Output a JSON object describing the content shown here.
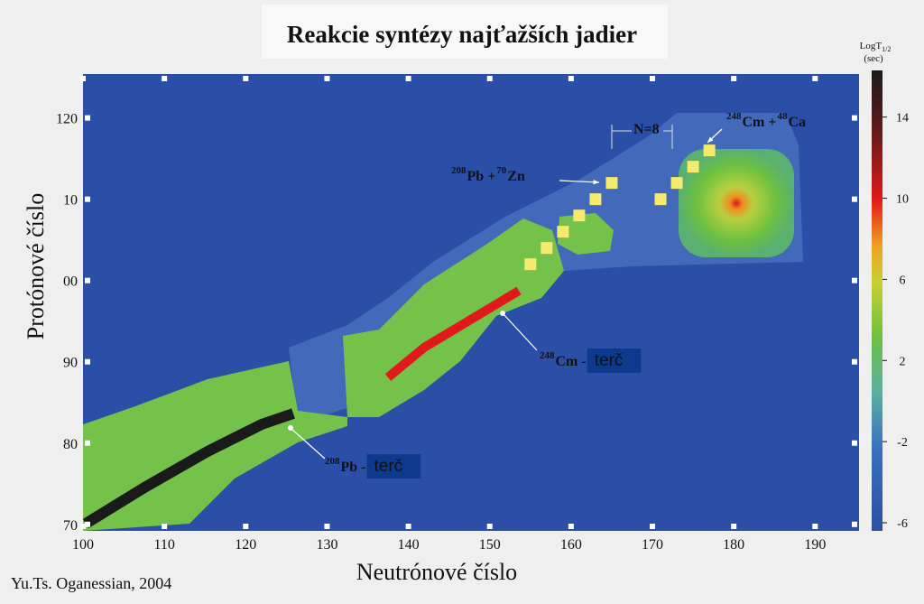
{
  "chart_data": {
    "type": "scatter",
    "title": "Reakcie syntézy najťažších jadier",
    "xlabel": "Neutrónové číslo",
    "ylabel": "Protónové číslo",
    "credit": "Yu.Ts. Oganessian, 2004",
    "xlim": [
      100,
      195.4
    ],
    "ylim": [
      69.2,
      125.4
    ],
    "xticks": [
      100,
      110,
      120,
      130,
      140,
      150,
      160,
      170,
      180,
      190
    ],
    "yticks": [
      70,
      80,
      90,
      {
        "value": 100,
        "label": "00"
      },
      {
        "value": 110,
        "label": "10"
      },
      120
    ],
    "series": [
      {
        "color": "#f6ea6e",
        "x": [
          155,
          157,
          159,
          161,
          163,
          165
        ],
        "values": [
          102,
          104,
          106,
          108,
          110,
          112
        ]
      },
      {
        "color": "#f6ea6e",
        "x": [
          171,
          173,
          175,
          177
        ],
        "values": [
          110,
          112,
          114,
          116
        ]
      }
    ],
    "colorbar": {
      "label": "LogT",
      "label_sub": "1/2",
      "unit": "(sec)",
      "lim": [
        -6.4,
        16.3
      ],
      "ticks": [
        14,
        10,
        6,
        2,
        -2,
        -6
      ]
    },
    "annotations": [
      {
        "segments": [
          {
            "text": "208",
            "sup": true
          },
          {
            "text": "Pb + "
          },
          {
            "text": "70",
            "sup": true
          },
          {
            "text": "Zn"
          }
        ]
      },
      {
        "segments": [
          {
            "text": "248",
            "sup": true
          },
          {
            "text": "Cm + "
          },
          {
            "text": "48",
            "sup": true
          },
          {
            "text": "Ca"
          }
        ]
      },
      {
        "segments": [
          {
            "text": "248",
            "sup": true
          },
          {
            "text": "Cm - "
          },
          {
            "text": "terč",
            "box": true
          }
        ]
      },
      {
        "segments": [
          {
            "text": "208",
            "sup": true
          },
          {
            "text": "Pb - "
          },
          {
            "text": "terč",
            "box": true
          }
        ]
      },
      {
        "segments": [
          {
            "text": "N=8"
          }
        ]
      }
    ]
  }
}
